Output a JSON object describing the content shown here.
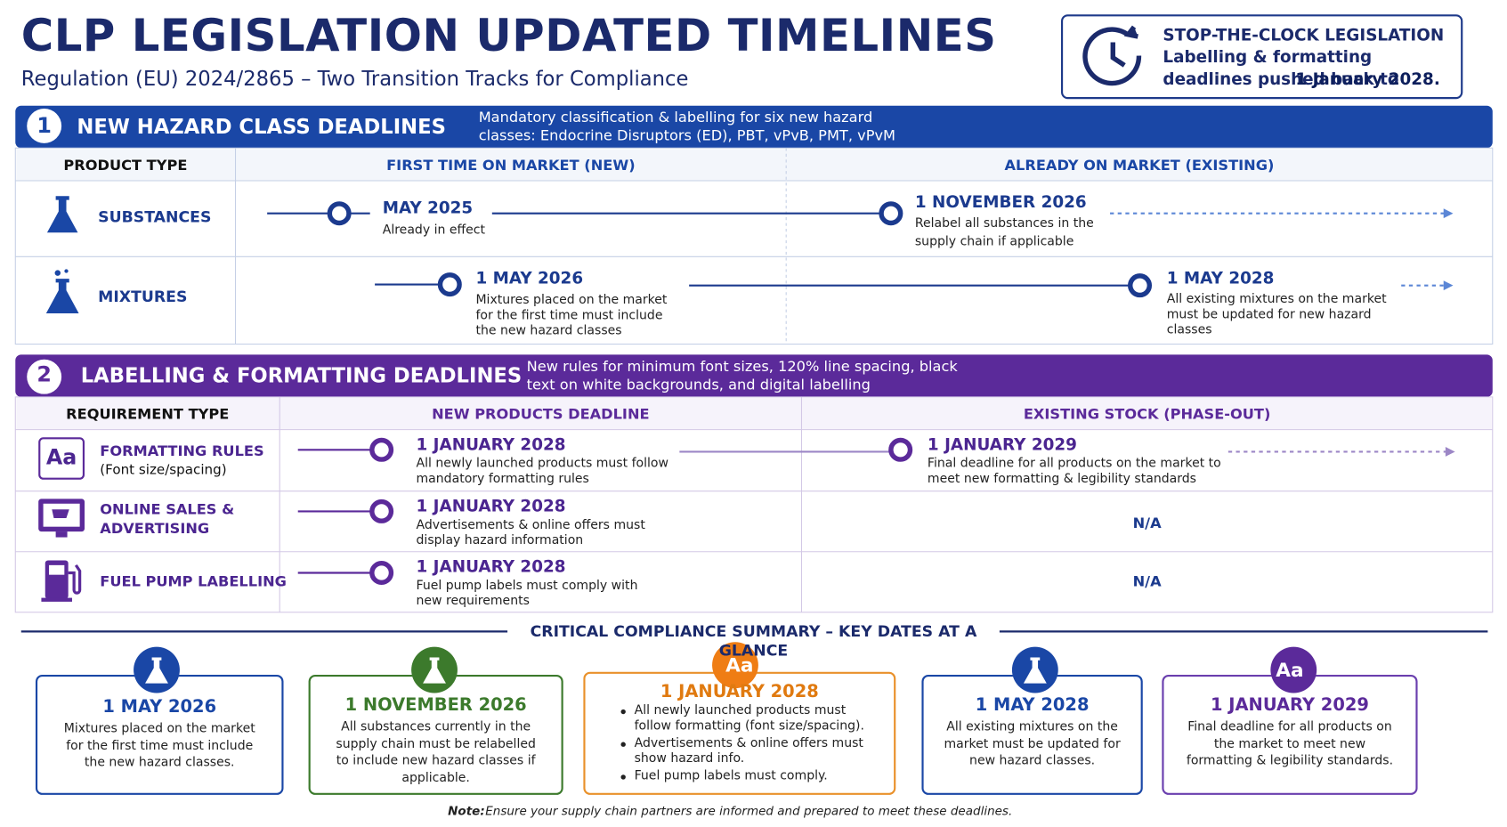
{
  "header": {
    "title": "CLP LEGISLATION UPDATED TIMELINES",
    "subtitle": "Regulation (EU) 2024/2865 – Two Transition Tracks for Compliance"
  },
  "notice": {
    "title": "STOP-THE-CLOCK LEGISLATION",
    "text": "Labelling & formatting deadlines pushed back to",
    "date": "1 January 2028."
  },
  "section1": {
    "number": "1",
    "title": "NEW HAZARD CLASS DEADLINES",
    "description": "Mandatory classification & labelling for six new hazard classes: Endocrine Disruptors (ED), PBT, vPvB, PMT, vPvM",
    "columns": [
      "PRODUCT TYPE",
      "FIRST TIME ON MARKET (NEW)",
      "ALREADY ON MARKET (EXISTING)"
    ],
    "rows": [
      {
        "label": "SUBSTANCES",
        "new": {
          "date": "MAY 2025",
          "text": "Already in effect"
        },
        "existing": {
          "date": "1 NOVEMBER 2026",
          "text": "Relabel all substances in the supply chain if applicable"
        }
      },
      {
        "label": "MIXTURES",
        "new": {
          "date": "1 MAY 2026",
          "text": "Mixtures placed on the market for the first time must include the new hazard classes"
        },
        "existing": {
          "date": "1 MAY 2028",
          "text": "All existing mixtures on the market must be updated for new hazard classes"
        }
      }
    ]
  },
  "section2": {
    "number": "2",
    "title": "LABELLING & FORMATTING DEADLINES",
    "description": "New rules for minimum font sizes, 120% line spacing, black text on white backgrounds, and digital labelling",
    "columns": [
      "REQUIREMENT TYPE",
      "NEW PRODUCTS DEADLINE",
      "EXISTING STOCK (PHASE-OUT)"
    ],
    "rows": [
      {
        "icon_text": "Aa",
        "label": "FORMATTING RULES",
        "sublabel": "(Font size/spacing)",
        "new": {
          "date": "1 JANUARY 2028",
          "text": "All newly launched products must follow mandatory formatting rules"
        },
        "existing": {
          "date": "1 JANUARY 2029",
          "text": "Final deadline for all products on the market to meet new formatting & legibility standards"
        }
      },
      {
        "label": "ONLINE SALES & ADVERTISING",
        "new": {
          "date": "1 JANUARY 2028",
          "text": "Advertisements & online offers must display hazard information"
        },
        "existing": {
          "text": "N/A"
        }
      },
      {
        "label": "FUEL PUMP LABELLING",
        "new": {
          "date": "1 JANUARY 2028",
          "text": "Fuel pump labels must comply with new requirements"
        },
        "existing": {
          "text": "N/A"
        }
      }
    ]
  },
  "summary": {
    "title": "CRITICAL COMPLIANCE SUMMARY – KEY DATES AT A GLANCE",
    "cards": [
      {
        "date": "1 MAY 2026",
        "text": "Mixtures placed on the market for the first time must include the new hazard classes."
      },
      {
        "date": "1 NOVEMBER 2026",
        "text": "All substances currently in the supply chain must be relabelled to include new hazard classes if applicable."
      },
      {
        "icon_text": "Aa",
        "date": "1 JANUARY 2028",
        "bullets": [
          "All newly launched products must follow formatting (font size/spacing).",
          "Advertisements & online offers must show hazard info.",
          "Fuel pump labels must comply."
        ]
      },
      {
        "date": "1 MAY 2028",
        "text": "All existing mixtures on the market must be updated for new hazard classes."
      },
      {
        "icon_text": "Aa",
        "date": "1 JANUARY 2029",
        "text": "Final deadline for all products on the market to meet new formatting & legibility standards."
      }
    ]
  },
  "note": {
    "label": "Note:",
    "text": "Ensure your supply chain partners are informed and prepared to meet these deadlines."
  }
}
